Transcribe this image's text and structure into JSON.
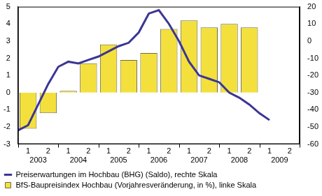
{
  "chart_data": {
    "type": "bar",
    "categories": [
      null,
      "1",
      null,
      "2",
      null,
      "1",
      null,
      "2",
      null,
      "1",
      null,
      "2",
      null,
      "1",
      null,
      "2",
      null,
      "1",
      null,
      "2",
      null,
      "1",
      null,
      "2",
      null,
      "1",
      null,
      "2",
      null
    ],
    "category_groups": [
      "2003",
      "2004",
      "2005",
      "2006",
      "2007",
      "2008",
      "2009"
    ],
    "series": [
      {
        "name": "Preiserwartungen im Hochbau (BHG) (Saldo), rechte Skala",
        "type": "line",
        "axis": "y2",
        "color": "#3b3694",
        "values": [
          -52,
          -49,
          -37,
          -25,
          -15,
          -12,
          -13,
          -11,
          -9,
          -6,
          -3,
          -1,
          5,
          16,
          18,
          10,
          0,
          -12,
          -20,
          -22,
          -24,
          -30,
          -33,
          -37,
          -42,
          -46,
          null,
          null,
          null
        ]
      },
      {
        "name": "BfS-Baupreisindex Hochbau (Vorjahresveränderung, in %), linke Skala",
        "type": "bar",
        "color": "#f4e03c",
        "values": [
          null,
          -2.1,
          null,
          -1.2,
          null,
          0.1,
          null,
          1.7,
          null,
          2.8,
          null,
          1.9,
          null,
          2.3,
          null,
          3.7,
          null,
          4.2,
          null,
          3.8,
          null,
          4.0,
          null,
          3.8,
          null,
          null,
          null,
          null,
          null
        ]
      }
    ],
    "ylim": [
      -3,
      5
    ],
    "yticks": [
      -3,
      -2,
      -1,
      0,
      1,
      2,
      3,
      4,
      5
    ],
    "y2lim": [
      -60,
      20
    ],
    "y2ticks": [
      -60,
      -50,
      -40,
      -30,
      -20,
      -10,
      0,
      10,
      20
    ],
    "grid": false,
    "legend": "bottom"
  }
}
